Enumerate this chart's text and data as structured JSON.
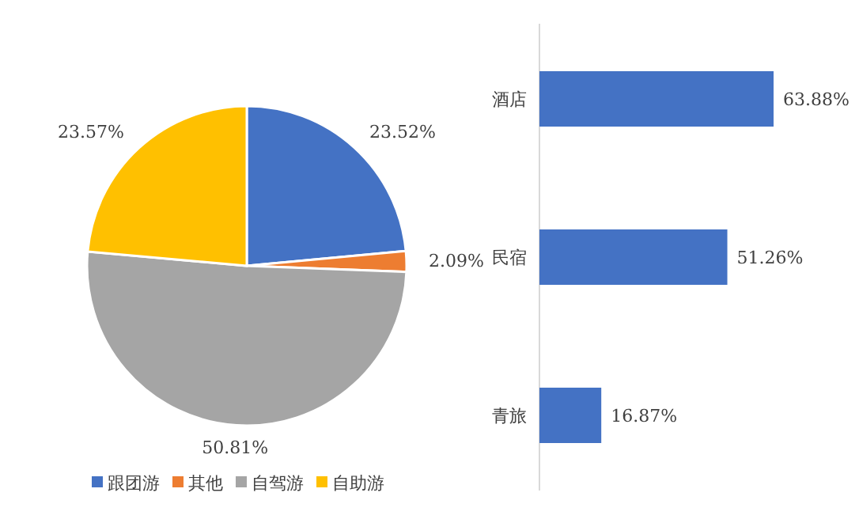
{
  "chart_data": [
    {
      "type": "pie",
      "categories": [
        "跟团游",
        "其他",
        "自驾游",
        "自助游"
      ],
      "values": [
        23.52,
        2.09,
        50.81,
        23.57
      ],
      "colors": [
        "#4472c4",
        "#ed7d31",
        "#a5a5a5",
        "#ffc000"
      ],
      "value_labels": [
        "23.52%",
        "2.09%",
        "50.81%",
        "23.57%"
      ],
      "legend": "bottom"
    },
    {
      "type": "bar",
      "orientation": "horizontal",
      "categories": [
        "酒店",
        "民宿",
        "青旅"
      ],
      "values": [
        63.88,
        51.26,
        16.87
      ],
      "value_labels": [
        "63.88%",
        "51.26%",
        "16.87%"
      ],
      "color": "#4472c4"
    }
  ]
}
